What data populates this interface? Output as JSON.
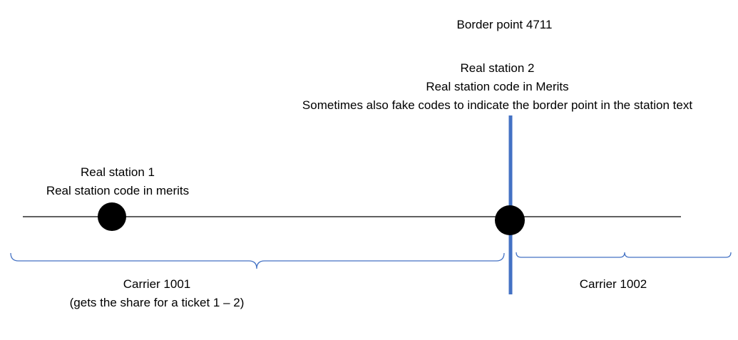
{
  "labels": {
    "border_point": "Border point 4711",
    "station2_line1": "Real station 2",
    "station2_line2": "Real station code in Merits",
    "station2_line3": "Sometimes also fake codes to indicate the border point in the station text",
    "station1_line1": "Real station 1",
    "station1_line2": "Real station code in merits",
    "carrier1_line1": "Carrier 1001",
    "carrier1_line2": "(gets the share for a ticket 1 – 2)",
    "carrier2_line1": "Carrier 1002"
  },
  "colors": {
    "border_line": "#4472C4",
    "brace": "#4472C4",
    "track": "#000000",
    "station_dot": "#000000"
  }
}
